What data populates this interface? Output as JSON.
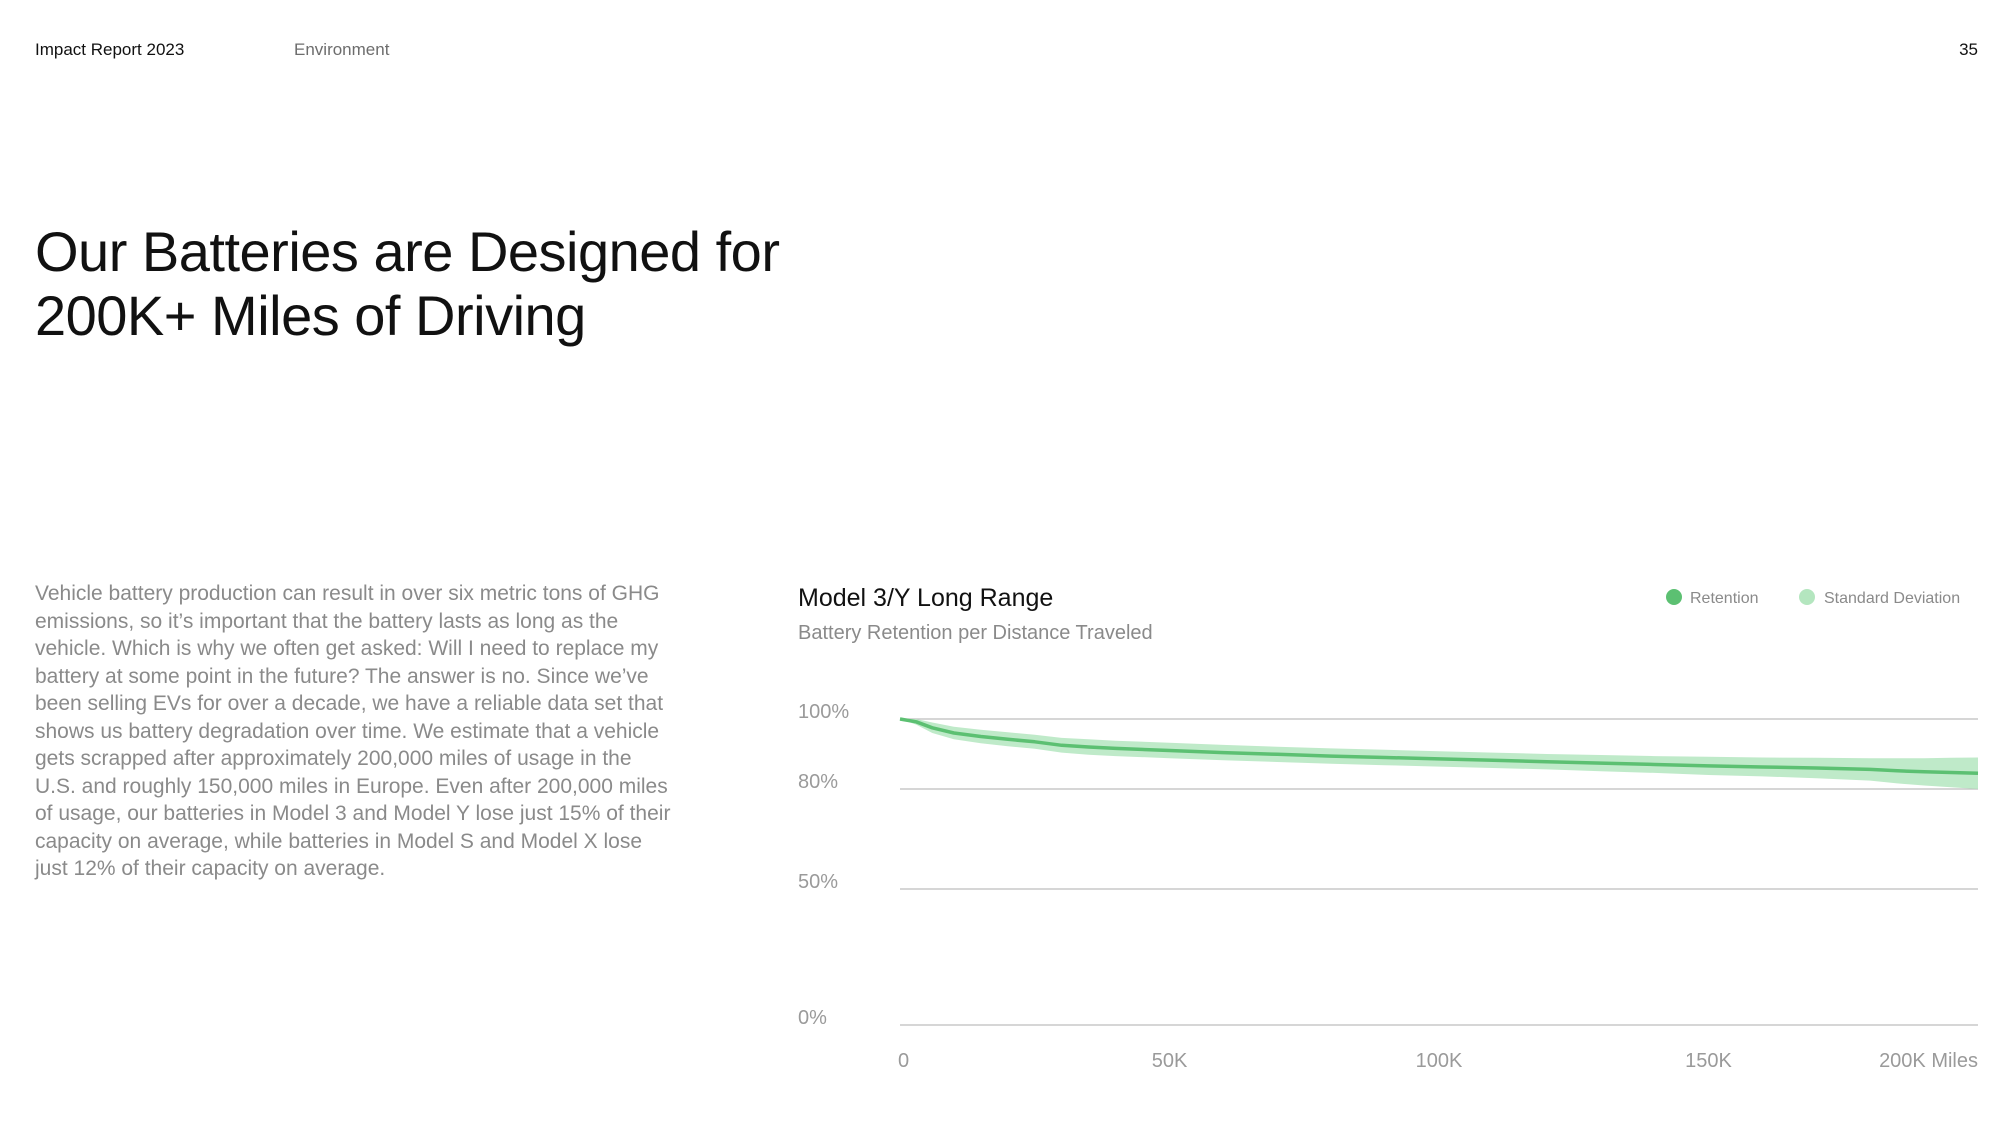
{
  "header": {
    "report": "Impact Report 2023",
    "section": "Environment",
    "page_number": "35"
  },
  "title": "Our Batteries are Designed for 200K+ Miles of Driving",
  "body": "Vehicle battery production can result in over six metric tons of GHG emissions, so it’s important that the battery lasts as long as the vehicle. Which is why we often get asked: Will I need to replace my battery at some point in the future? The answer is no. Since we’ve been selling EVs for over a decade, we have a reliable data set that shows us battery degradation over time. We estimate that a vehicle gets scrapped after approximately 200,000 miles of usage in the U.S. and roughly 150,000 miles in Europe. Even after 200,000 miles of usage, our batteries in Model 3 and Model Y lose just 15% of their capacity on average, while batteries in Model S and Model X lose just 12% of their capacity on average.",
  "chart_data": {
    "type": "line",
    "title": "Model 3/Y Long Range",
    "subtitle": "Battery Retention per Distance Traveled",
    "legend": [
      {
        "label": "Retention",
        "color": "#5cc072"
      },
      {
        "label": "Standard Deviation",
        "color": "#b4e6bf"
      }
    ],
    "legend_position": "top-right",
    "x_ticks": [
      {
        "value": 0,
        "label": "0"
      },
      {
        "value": 50000,
        "label": "50K"
      },
      {
        "value": 100000,
        "label": "100K"
      },
      {
        "value": 150000,
        "label": "150K"
      },
      {
        "value": 200000,
        "label": "200K Miles"
      }
    ],
    "y_ticks": [
      {
        "value": 100,
        "label": "100%"
      },
      {
        "value": 80,
        "label": "80%"
      },
      {
        "value": 50,
        "label": "50%"
      },
      {
        "value": 0,
        "label": "0%"
      }
    ],
    "xlim": [
      0,
      200000
    ],
    "grid": true,
    "series": [
      {
        "name": "Retention",
        "x": [
          0,
          3000,
          6000,
          10000,
          15000,
          20000,
          25000,
          30000,
          35000,
          40000,
          50000,
          60000,
          70000,
          80000,
          90000,
          100000,
          110000,
          120000,
          130000,
          140000,
          150000,
          160000,
          170000,
          180000,
          185000,
          190000,
          195000,
          200000
        ],
        "y": [
          100,
          99.2,
          97.5,
          96.0,
          95.0,
          94.2,
          93.5,
          92.5,
          92.0,
          91.6,
          91.0,
          90.4,
          89.9,
          89.4,
          89.0,
          88.6,
          88.2,
          87.8,
          87.4,
          87.0,
          86.6,
          86.3,
          86.0,
          85.6,
          85.2,
          84.9,
          84.7,
          84.5
        ]
      },
      {
        "name": "Standard Deviation",
        "x": [
          0,
          3000,
          6000,
          10000,
          15000,
          20000,
          25000,
          30000,
          35000,
          40000,
          50000,
          60000,
          70000,
          80000,
          90000,
          100000,
          110000,
          120000,
          130000,
          140000,
          150000,
          160000,
          170000,
          180000,
          185000,
          190000,
          195000,
          200000
        ],
        "upper": [
          100,
          100,
          99.0,
          97.8,
          96.9,
          96.2,
          95.5,
          94.6,
          94.2,
          93.8,
          93.2,
          92.6,
          92.1,
          91.6,
          91.2,
          90.8,
          90.4,
          90.0,
          89.7,
          89.4,
          89.2,
          89.0,
          88.9,
          88.8,
          88.8,
          88.8,
          88.9,
          89.0
        ],
        "lower": [
          100,
          98.4,
          96.0,
          94.2,
          93.1,
          92.2,
          91.5,
          90.4,
          89.8,
          89.4,
          88.8,
          88.2,
          87.7,
          87.2,
          86.8,
          86.4,
          86.0,
          85.6,
          85.1,
          84.6,
          84.0,
          83.6,
          83.1,
          82.4,
          81.6,
          81.0,
          80.5,
          80.0
        ]
      }
    ]
  }
}
